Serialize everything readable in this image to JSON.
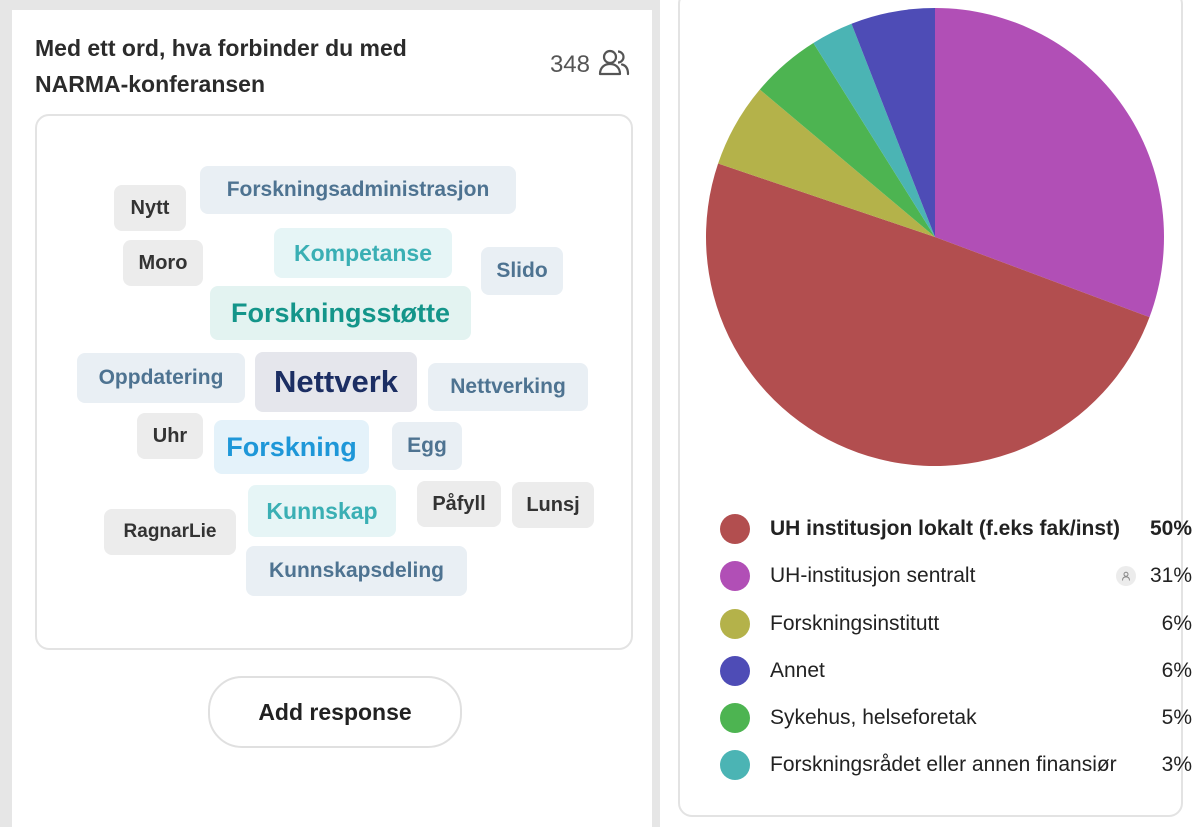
{
  "question": {
    "title": "Med ett ord, hva forbinder du med NARMA-konferansen",
    "participant_count": "348"
  },
  "word_cloud": [
    {
      "text": "Nytt",
      "size": "sm",
      "color": "#333333",
      "bg": "#ececec"
    },
    {
      "text": "Forskningsadministrasjon",
      "size": "md",
      "color": "#4e7391",
      "bg": "#e9eff4"
    },
    {
      "text": "Moro",
      "size": "sm",
      "color": "#333333",
      "bg": "#ececec"
    },
    {
      "text": "Kompetanse",
      "size": "lg",
      "color": "#3aafb4",
      "bg": "#e6f5f6"
    },
    {
      "text": "Slido",
      "size": "md",
      "color": "#4e7391",
      "bg": "#e9eff4"
    },
    {
      "text": "Forskningsstøtte",
      "size": "xl",
      "color": "#14958a",
      "bg": "#e3f3f1"
    },
    {
      "text": "Oppdatering",
      "size": "md",
      "color": "#4e7391",
      "bg": "#e9eff4"
    },
    {
      "text": "Nettverk",
      "size": "xxl",
      "color": "#1c2e63",
      "bg": "#e5e6ec"
    },
    {
      "text": "Nettverking",
      "size": "md",
      "color": "#4e7391",
      "bg": "#e9eff4"
    },
    {
      "text": "Uhr",
      "size": "sm",
      "color": "#333333",
      "bg": "#ececec"
    },
    {
      "text": "Forskning",
      "size": "xl",
      "color": "#1e97d8",
      "bg": "#e4f2fa"
    },
    {
      "text": "Egg",
      "size": "md",
      "color": "#4e7391",
      "bg": "#e9eff4"
    },
    {
      "text": "Kunnskap",
      "size": "lg",
      "color": "#3aafb4",
      "bg": "#e6f5f6"
    },
    {
      "text": "Påfyll",
      "size": "sm",
      "color": "#333333",
      "bg": "#ececec"
    },
    {
      "text": "Lunsj",
      "size": "sm",
      "color": "#333333",
      "bg": "#ececec"
    },
    {
      "text": "RagnarLie",
      "size": "sm",
      "color": "#333333",
      "bg": "#ececec"
    },
    {
      "text": "Kunnskapsdeling",
      "size": "md",
      "color": "#4e7391",
      "bg": "#e9eff4"
    }
  ],
  "add_response_label": "Add response",
  "chart_data": {
    "type": "pie",
    "categories": [
      "UH institusjon lokalt (f.eks fak/inst)",
      "UH-institusjon sentralt",
      "Forskningsinstitutt",
      "Annet",
      "Sykehus, helseforetak",
      "Forskningsrådet eller annen finansiør"
    ],
    "values": [
      50,
      31,
      6,
      6,
      5,
      3
    ],
    "labels": [
      "50%",
      "31%",
      "6%",
      "6%",
      "5%",
      "3%"
    ],
    "colors": [
      "#b24e4f",
      "#b14fb6",
      "#b4b24a",
      "#4e4cb6",
      "#4db451",
      "#4bb4b4"
    ],
    "highlighted_index": 0,
    "legend_placement": "bottom"
  }
}
